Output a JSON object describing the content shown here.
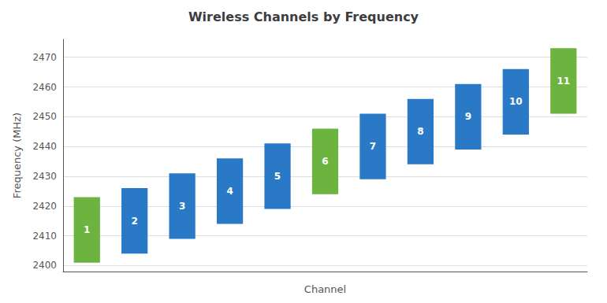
{
  "chart_data": {
    "type": "range_bar",
    "title": "Wireless Channels by Frequency",
    "xlabel": "Channel",
    "ylabel": "Frequency (MHz)",
    "categories": [
      "1",
      "2",
      "3",
      "4",
      "5",
      "6",
      "7",
      "8",
      "9",
      "10",
      "11"
    ],
    "low": [
      2401,
      2404,
      2409,
      2414,
      2419,
      2424,
      2429,
      2434,
      2439,
      2444,
      2451
    ],
    "high": [
      2423,
      2426,
      2431,
      2436,
      2441,
      2446,
      2451,
      2456,
      2461,
      2466,
      2473
    ],
    "colors": [
      "#6DB33F",
      "#2979C7",
      "#2979C7",
      "#2979C7",
      "#2979C7",
      "#6DB33F",
      "#2979C7",
      "#2979C7",
      "#2979C7",
      "#2979C7",
      "#6DB33F"
    ],
    "ylim": [
      2398,
      2476
    ],
    "yticks": [
      2400,
      2410,
      2420,
      2430,
      2440,
      2450,
      2460,
      2470
    ],
    "grid": true,
    "tick_labels": "y"
  }
}
